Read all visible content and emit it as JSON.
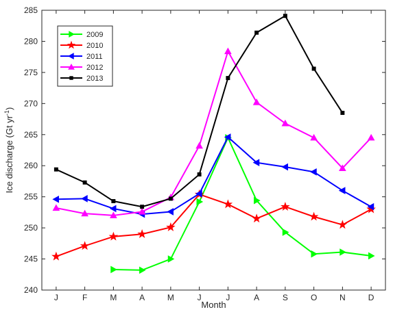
{
  "chart_data": {
    "type": "line",
    "xlabel": "Month",
    "ylabel": "Ice discharge (Gt yr",
    "ylabel_sup": "-1",
    "ylabel_end": ")",
    "categories": [
      "J",
      "F",
      "M",
      "A",
      "M",
      "J",
      "J",
      "A",
      "S",
      "O",
      "N",
      "D"
    ],
    "ylim": [
      240,
      285
    ],
    "yticks": [
      240,
      245,
      250,
      255,
      260,
      265,
      270,
      275,
      280,
      285
    ],
    "grid": false,
    "legend_position": "top-left",
    "series": [
      {
        "name": "2009",
        "color": "#00ff00",
        "marker": "triangle-right",
        "values": [
          null,
          null,
          243.3,
          243.2,
          245.0,
          254.2,
          264.5,
          254.4,
          249.3,
          245.8,
          246.1,
          245.5
        ]
      },
      {
        "name": "2010",
        "color": "#ff0000",
        "marker": "star",
        "values": [
          245.4,
          247.1,
          248.6,
          249.0,
          250.1,
          255.4,
          253.8,
          251.5,
          253.4,
          251.8,
          250.5,
          253.0
        ]
      },
      {
        "name": "2011",
        "color": "#0000ff",
        "marker": "triangle-left",
        "values": [
          254.6,
          254.7,
          253.1,
          252.2,
          252.6,
          255.5,
          264.6,
          260.5,
          259.8,
          259.0,
          256.0,
          253.4
        ]
      },
      {
        "name": "2012",
        "color": "#ff00ff",
        "marker": "triangle-up",
        "values": [
          253.2,
          252.3,
          252.0,
          252.6,
          254.9,
          263.2,
          278.4,
          270.2,
          266.8,
          264.5,
          259.6,
          264.5
        ]
      },
      {
        "name": "2013",
        "color": "#000000",
        "marker": "square",
        "values": [
          259.4,
          257.3,
          254.3,
          253.4,
          254.7,
          258.6,
          274.1,
          281.4,
          284.1,
          275.6,
          268.5,
          null
        ]
      }
    ]
  }
}
